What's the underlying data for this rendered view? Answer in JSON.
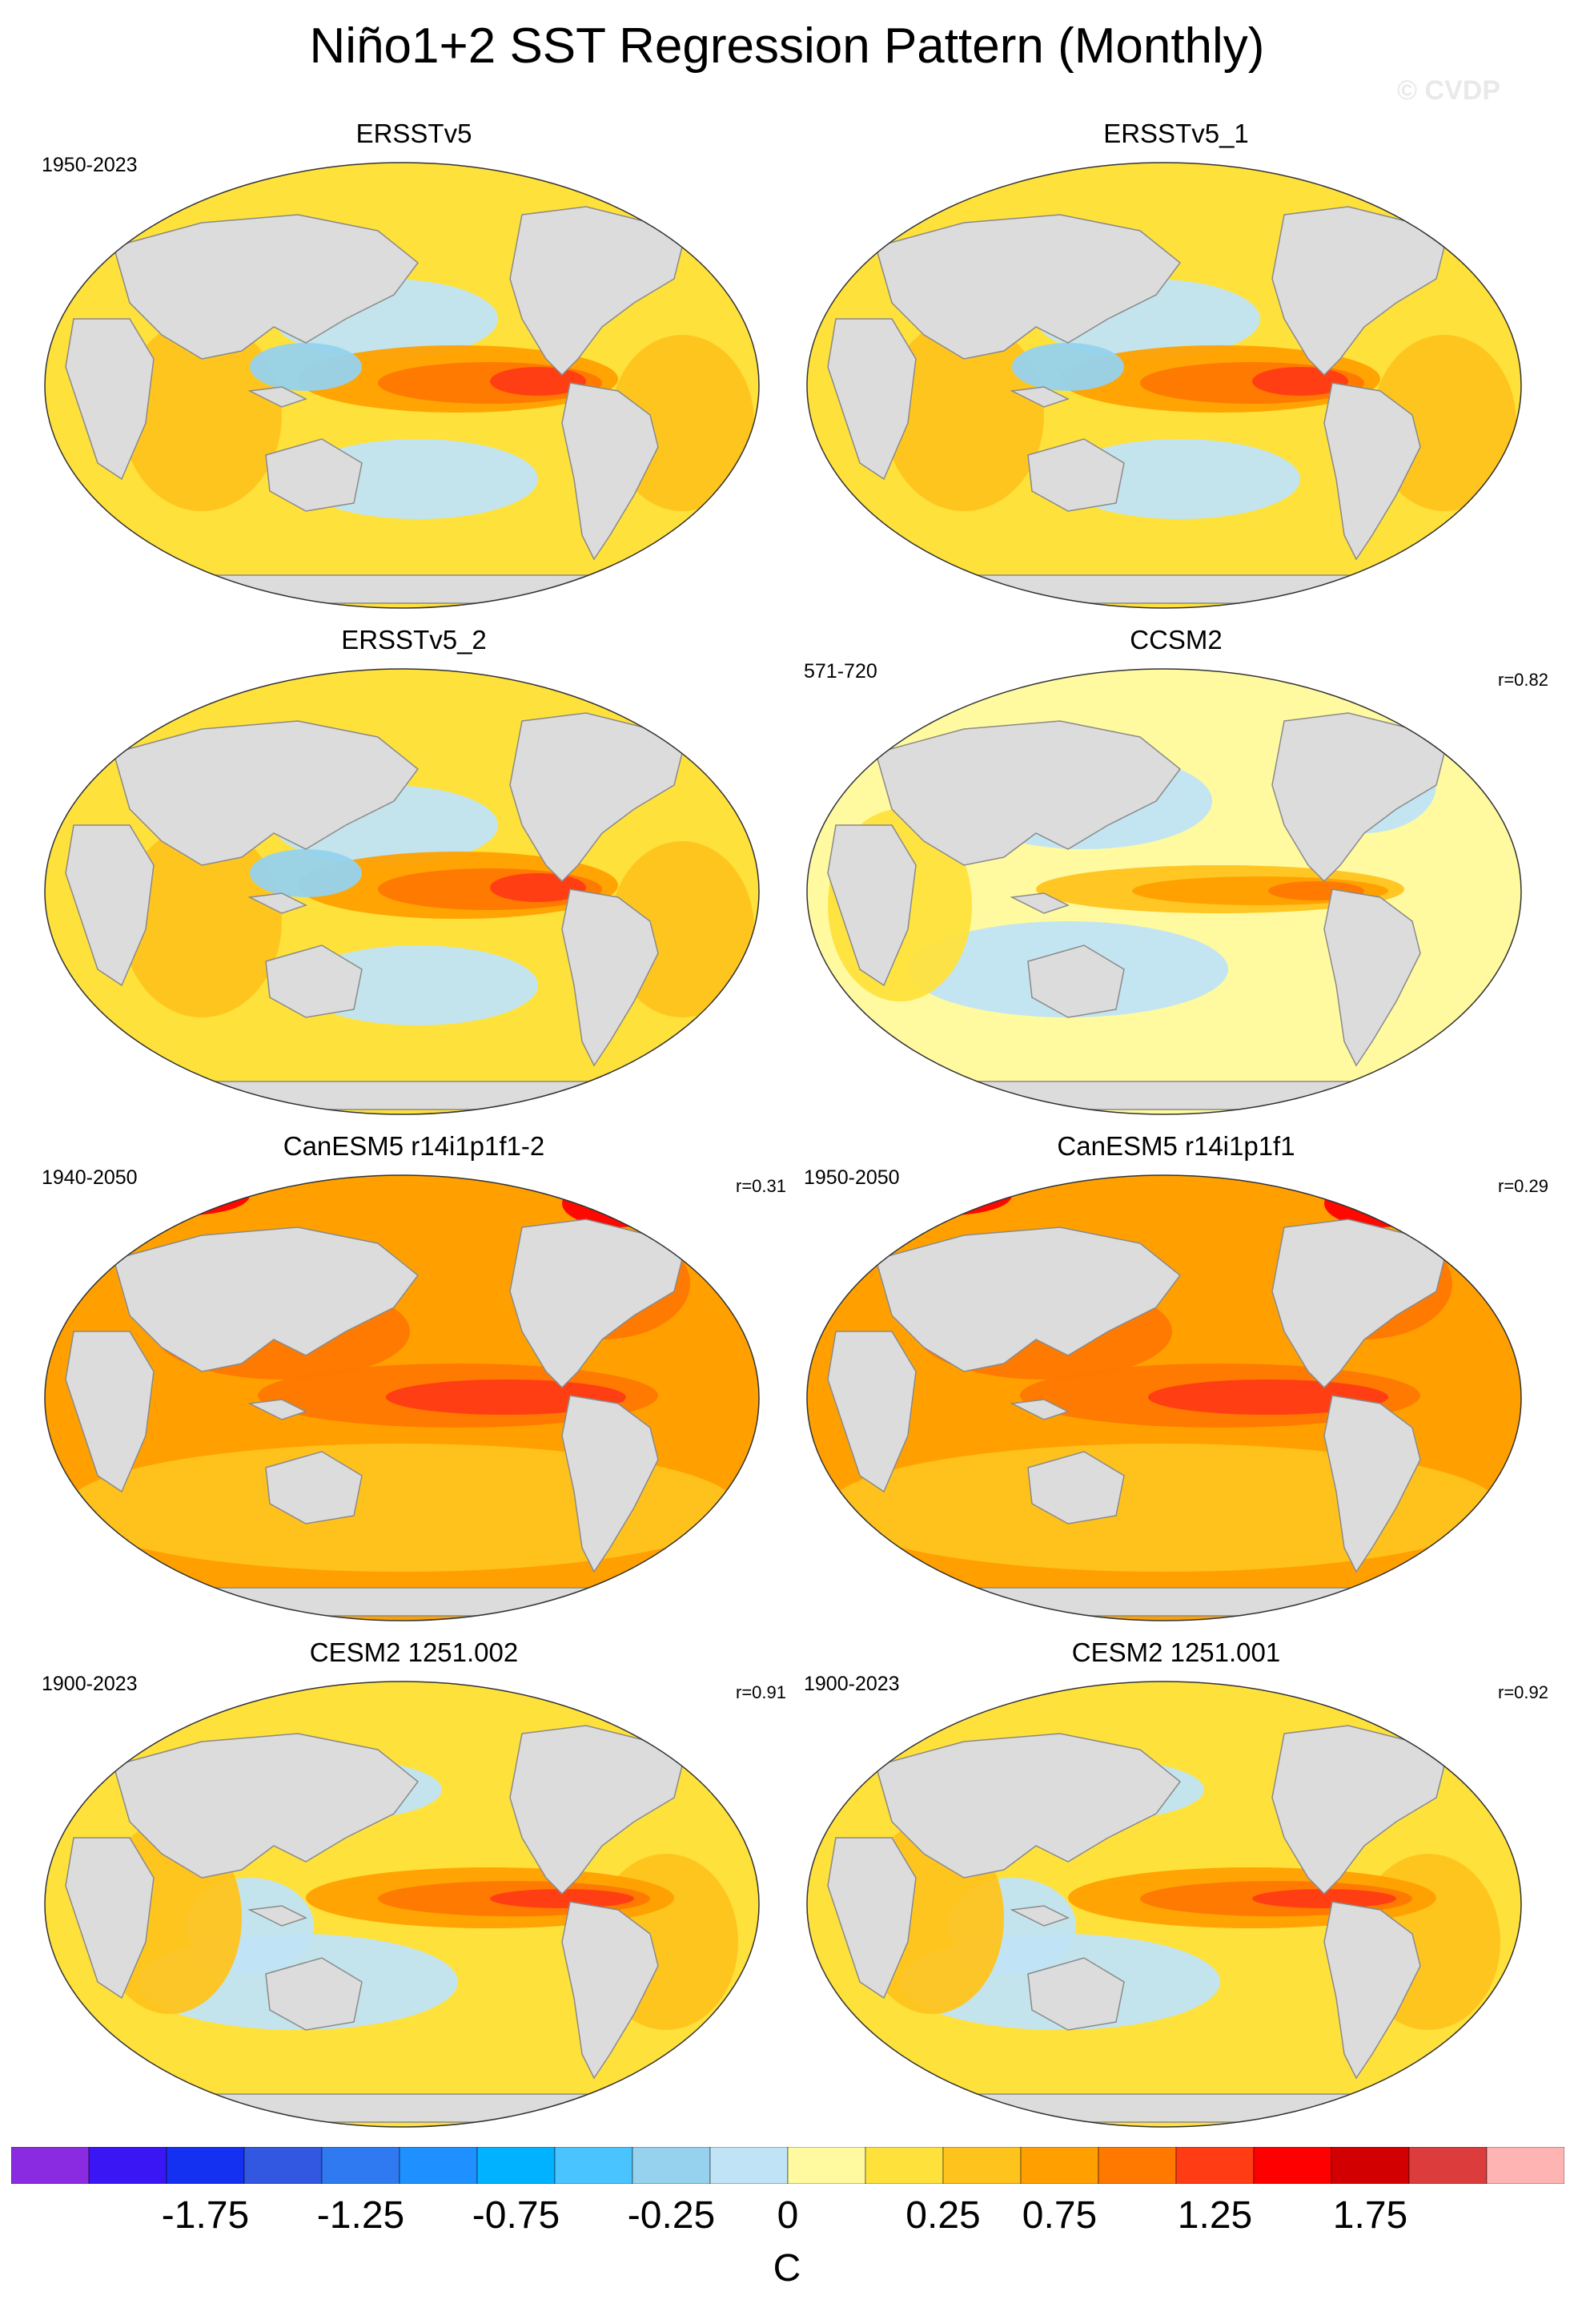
{
  "title": "Niño1+2 SST Regression Pattern (Monthly)",
  "watermark": "© CVDP",
  "panels": [
    {
      "title": "ERSSTv5",
      "years": "1950-2023",
      "corr": "",
      "pattern": "obs"
    },
    {
      "title": "ERSSTv5_1",
      "years": "",
      "corr": "",
      "pattern": "obs"
    },
    {
      "title": "ERSSTv5_2",
      "years": "",
      "corr": "",
      "pattern": "obs"
    },
    {
      "title": "CCSM2",
      "years": "571-720",
      "corr": "r=0.82",
      "pattern": "ccsm"
    },
    {
      "title": "CanESM5 r14i1p1f1-2",
      "years": "1940-2050",
      "corr": "r=0.31",
      "pattern": "canesm"
    },
    {
      "title": "CanESM5 r14i1p1f1",
      "years": "1950-2050",
      "corr": "r=0.29",
      "pattern": "canesm"
    },
    {
      "title": "CESM2 1251.002",
      "years": "1900-2023",
      "corr": "r=0.91",
      "pattern": "cesm"
    },
    {
      "title": "CESM2 1251.001",
      "years": "1900-2023",
      "corr": "r=0.92",
      "pattern": "cesm"
    }
  ],
  "colorbar": {
    "unit": "C",
    "colors": [
      "#8a2be2",
      "#3a16f5",
      "#1430f0",
      "#3257e0",
      "#2f7af0",
      "#1e90ff",
      "#00b2ff",
      "#49c4ff",
      "#96d2ee",
      "#c0e4f6",
      "#fffaa0",
      "#ffe13c",
      "#ffc31e",
      "#ffa000",
      "#ff7800",
      "#ff3c14",
      "#ff0000",
      "#d20000",
      "#dc3c3c",
      "#ffb4b4"
    ],
    "ticks": [
      "-1.75",
      "-1.25",
      "-0.75",
      "-0.25",
      "0",
      "0.25",
      "0.75",
      "1.25",
      "1.75"
    ]
  }
}
